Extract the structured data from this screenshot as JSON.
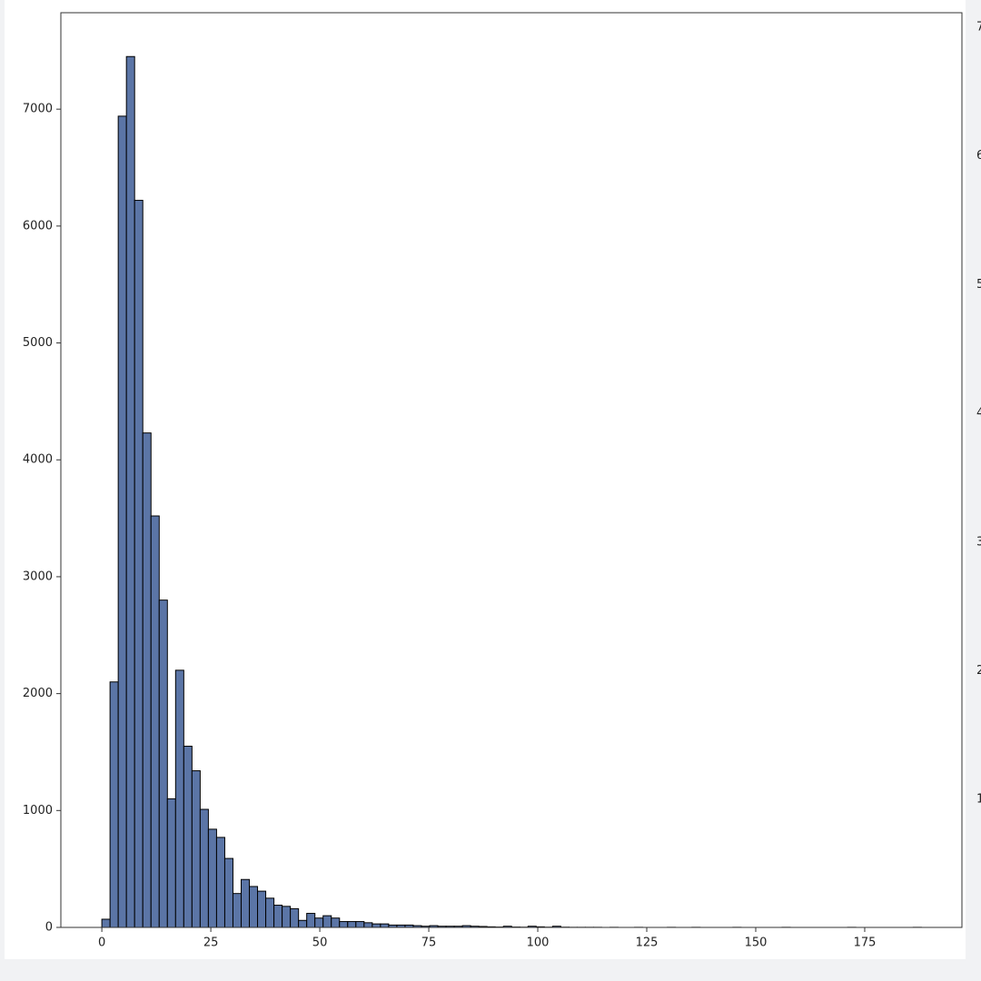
{
  "chart_data": {
    "type": "histogram",
    "bins": [
      0,
      1.88,
      3.76,
      5.64,
      7.52,
      9.4,
      11.28,
      13.16,
      15.04,
      16.92,
      18.8,
      20.68,
      22.56,
      24.44,
      26.32,
      28.2,
      30.08,
      31.96,
      33.84,
      35.72,
      37.6,
      39.48,
      41.36,
      43.24,
      45.12,
      47,
      48.88,
      50.76,
      52.64,
      54.52,
      56.4,
      58.28,
      60.16,
      62.04,
      63.92,
      65.8,
      67.68,
      69.56,
      71.44,
      73.32,
      75.2,
      77.08,
      78.96,
      80.84,
      82.72,
      84.6,
      86.48,
      88.36,
      90.24,
      92.12,
      94,
      95.88,
      97.76,
      99.64,
      101.52,
      103.4,
      105.28,
      107.16,
      109.04,
      110.92,
      112.8,
      114.68,
      116.56,
      118.44,
      120.32,
      122.2,
      124.08,
      125.96,
      127.84,
      129.72,
      131.6,
      133.48,
      135.36,
      137.24,
      139.12,
      141,
      142.88,
      144.76,
      146.64,
      148.52,
      150.4,
      152.28,
      154.16,
      156.04,
      157.92,
      159.8,
      161.68,
      163.56,
      165.44,
      167.32,
      169.2,
      171.08,
      172.96,
      174.84,
      176.72,
      178.6,
      180.48,
      182.36,
      184.24,
      186.12,
      188
    ],
    "values": [
      70,
      2100,
      6940,
      7450,
      6220,
      4230,
      3520,
      2800,
      1100,
      2200,
      1550,
      1340,
      1010,
      840,
      770,
      590,
      290,
      410,
      350,
      310,
      250,
      190,
      180,
      160,
      60,
      120,
      80,
      100,
      80,
      50,
      50,
      50,
      40,
      30,
      30,
      20,
      20,
      20,
      15,
      10,
      15,
      10,
      10,
      10,
      15,
      10,
      8,
      5,
      3,
      10,
      3,
      2,
      10,
      5,
      2,
      10,
      2,
      1,
      1,
      1,
      1,
      0,
      1,
      0,
      0,
      1,
      0,
      0,
      0,
      1,
      0,
      0,
      1,
      0,
      0,
      0,
      0,
      1,
      0,
      0,
      0,
      0,
      0,
      1,
      0,
      0,
      0,
      0,
      0,
      0,
      0,
      1,
      0,
      0,
      0,
      0,
      0,
      0,
      0,
      1
    ],
    "color": "#5b75a6",
    "xlim": [
      -9.4,
      197.3
    ],
    "ylim": [
      0,
      7825
    ],
    "xticks": [
      0,
      25,
      50,
      75,
      100,
      125,
      150,
      175
    ],
    "yticks": [
      0,
      1000,
      2000,
      3000,
      4000,
      5000,
      6000,
      7000
    ],
    "cropped_labels": [
      "7",
      "6",
      "5",
      "4",
      "3",
      "2",
      "1"
    ]
  }
}
